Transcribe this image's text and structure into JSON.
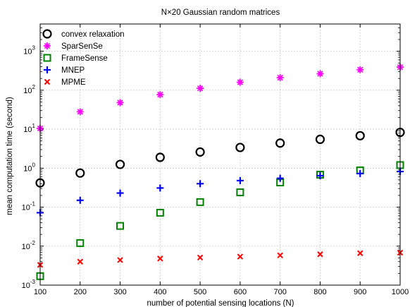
{
  "chart_data": {
    "type": "scatter",
    "title": "N×20 Gaussian random matrices",
    "xlabel": "number of potential sensing locations (N)",
    "ylabel": "mean computation time (second)",
    "x": [
      100,
      200,
      300,
      400,
      500,
      600,
      700,
      800,
      900,
      1000
    ],
    "xlim": [
      100,
      1000
    ],
    "ylim": [
      0.001,
      5000
    ],
    "yscale": "log",
    "grid": true,
    "legend_position": "top-left",
    "x_tick_labels": [
      "100",
      "200",
      "300",
      "400",
      "500",
      "600",
      "700",
      "800",
      "900",
      "1000"
    ],
    "y_tick_labels": [
      {
        "base": "10",
        "exp": "-3"
      },
      {
        "base": "10",
        "exp": "-2"
      },
      {
        "base": "10",
        "exp": "-1"
      },
      {
        "base": "10",
        "exp": "0"
      },
      {
        "base": "10",
        "exp": "1"
      },
      {
        "base": "10",
        "exp": "2"
      },
      {
        "base": "10",
        "exp": "3"
      }
    ],
    "series": [
      {
        "name": "convex relaxation",
        "marker": "circle",
        "color": "#000000",
        "values": [
          0.42,
          0.75,
          1.25,
          1.9,
          2.6,
          3.4,
          4.4,
          5.5,
          6.8,
          8.3
        ]
      },
      {
        "name": "SparSenSe",
        "marker": "asterisk",
        "color": "#ff00ff",
        "values": [
          10.5,
          28,
          48,
          77,
          112,
          160,
          210,
          265,
          335,
          390
        ]
      },
      {
        "name": "FrameSense",
        "marker": "square",
        "color": "#008000",
        "values": [
          0.0017,
          0.012,
          0.033,
          0.072,
          0.135,
          0.24,
          0.43,
          0.68,
          0.88,
          1.2
        ]
      },
      {
        "name": "MNEP",
        "marker": "plus",
        "color": "#0000ff",
        "values": [
          0.072,
          0.15,
          0.23,
          0.31,
          0.4,
          0.48,
          0.55,
          0.64,
          0.73,
          0.82
        ]
      },
      {
        "name": "MPME",
        "marker": "x",
        "color": "#ff0000",
        "values": [
          0.0033,
          0.004,
          0.0044,
          0.0048,
          0.0051,
          0.0054,
          0.0058,
          0.0062,
          0.0066,
          0.0068
        ]
      }
    ]
  }
}
